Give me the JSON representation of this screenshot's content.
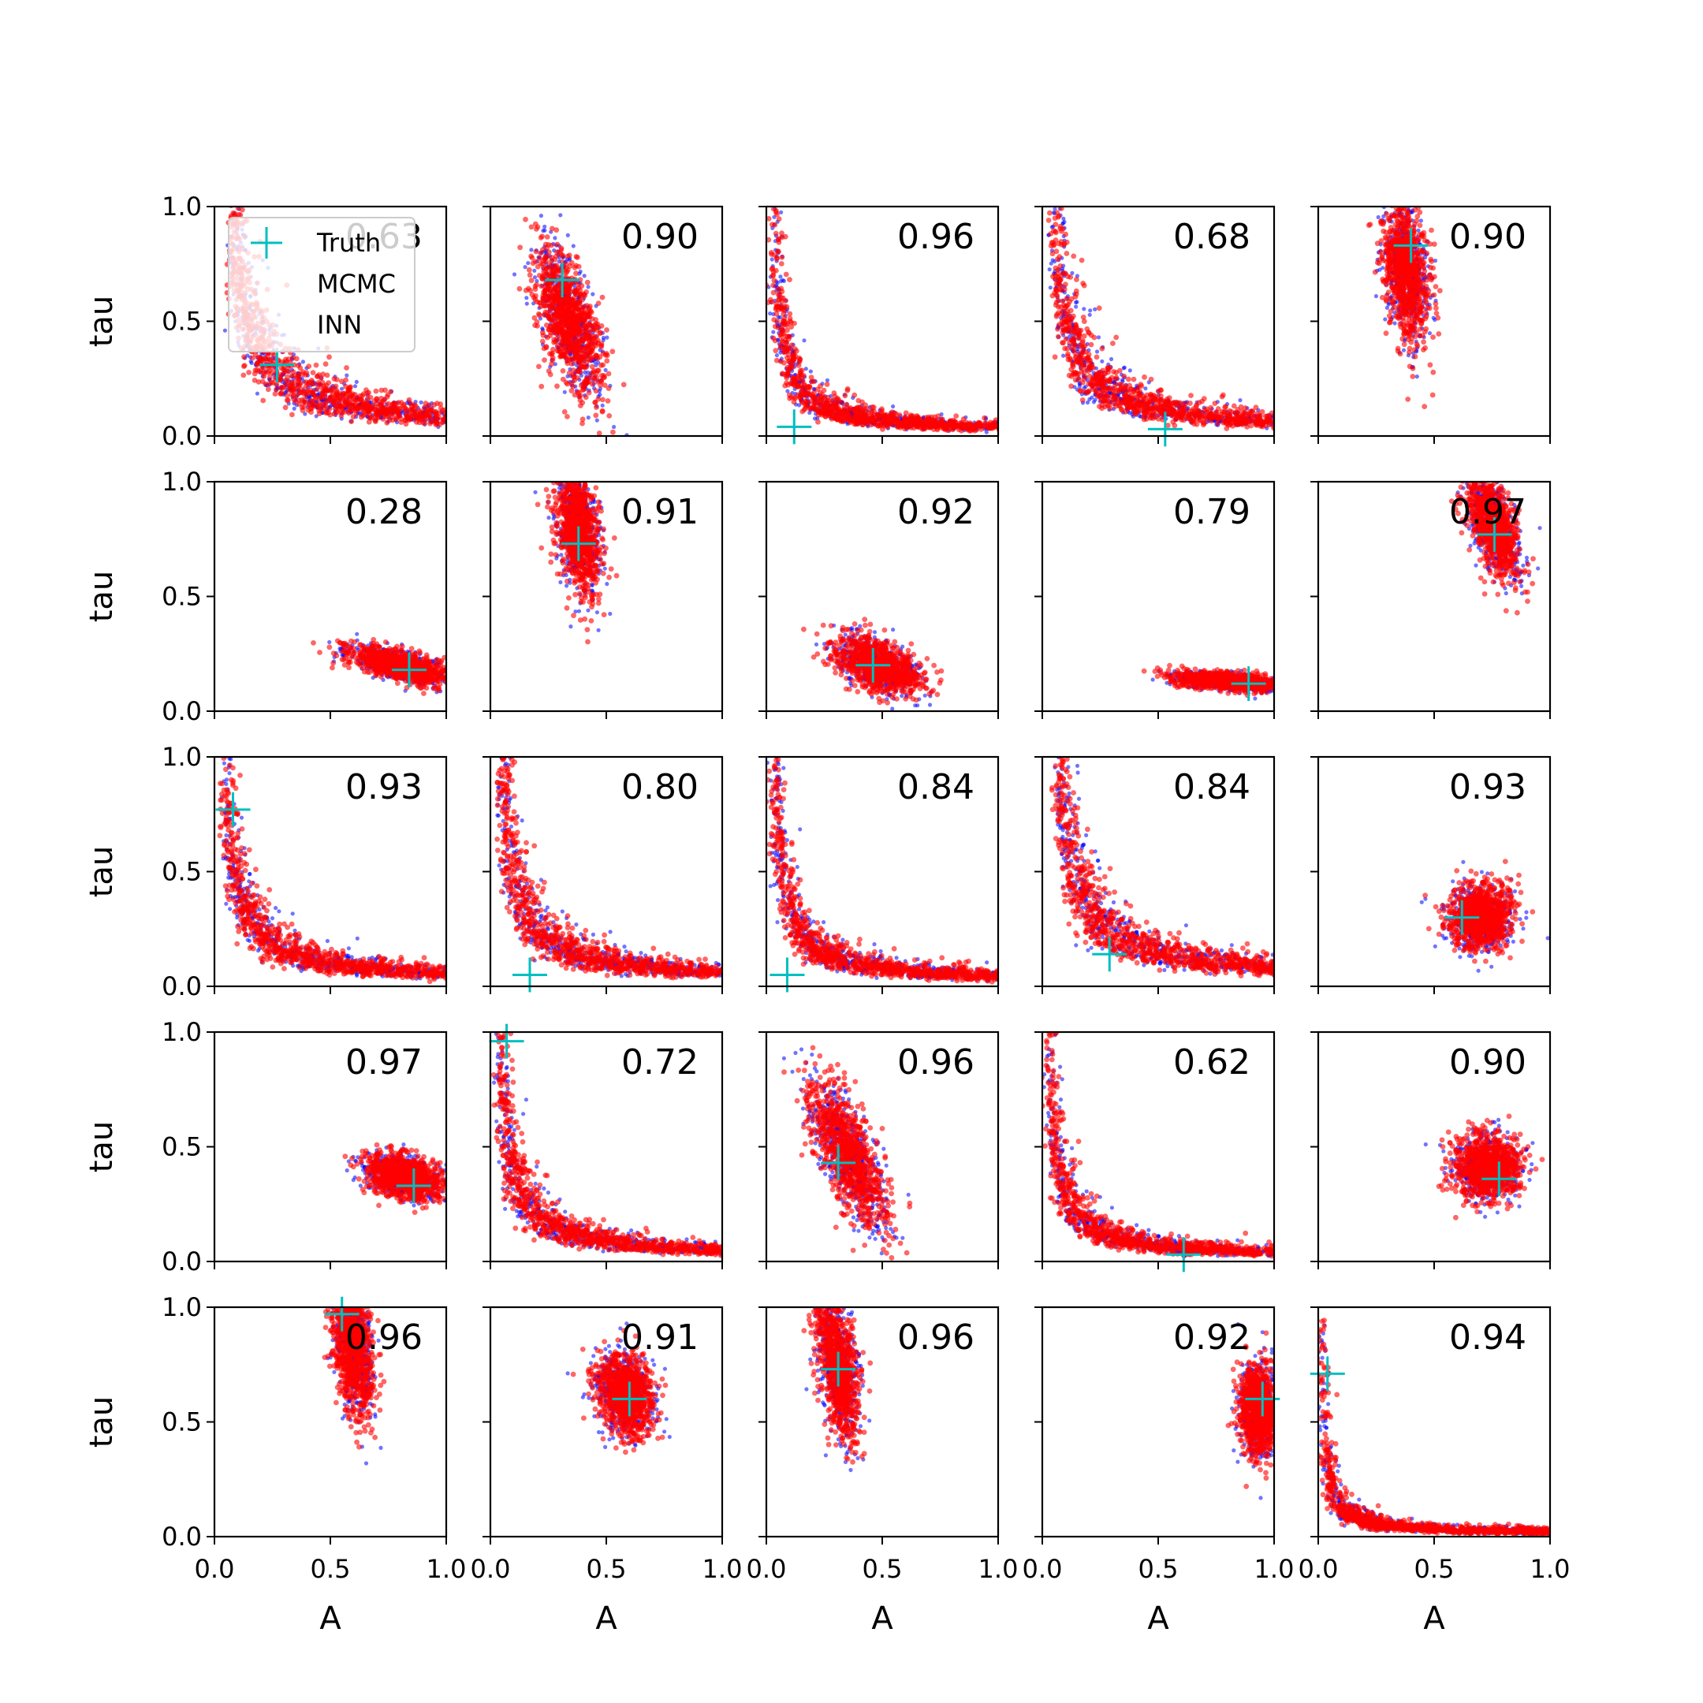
{
  "legend": {
    "placement": "upper-left of first panel",
    "entries": [
      {
        "name": "Truth",
        "color": "#00bfbf",
        "marker": "plus"
      },
      {
        "name": "MCMC",
        "color": "#0000ff",
        "marker": "dot"
      },
      {
        "name": "INN",
        "color": "#ff0000",
        "marker": "dot"
      }
    ]
  },
  "colors": {
    "mcmc": "#0000ff",
    "inn": "#ff0000",
    "truth": "#00bfbf"
  },
  "chart_data": {
    "type": "scatter",
    "grid": false,
    "rows": 5,
    "cols": 5,
    "xlabel": "A",
    "ylabel": "tau",
    "xlim": [
      0,
      1
    ],
    "ylim": [
      0,
      1
    ],
    "xticks": [
      "0.0",
      "0.5",
      "1.0"
    ],
    "yticks": [
      "0.0",
      "0.5",
      "1.0"
    ],
    "panels": [
      {
        "score": "0.63",
        "truth": [
          0.27,
          0.31
        ],
        "shape": "curve",
        "k": 0.075
      },
      {
        "score": "0.90",
        "truth": [
          0.31,
          0.68
        ],
        "shape": "blob",
        "c": [
          0.34,
          0.5
        ],
        "s": [
          0.055,
          0.16
        ],
        "rot": 0.3
      },
      {
        "score": "0.96",
        "truth": [
          0.12,
          0.04
        ],
        "shape": "curve",
        "k": 0.03
      },
      {
        "score": "0.68",
        "truth": [
          0.53,
          0.03
        ],
        "shape": "curve",
        "k": 0.055
      },
      {
        "score": "0.90",
        "truth": [
          0.4,
          0.83
        ],
        "shape": "blob",
        "c": [
          0.38,
          0.72
        ],
        "s": [
          0.045,
          0.15
        ],
        "rot": 0.1
      },
      {
        "score": "0.28",
        "truth": [
          0.84,
          0.18
        ],
        "shape": "blob",
        "c": [
          0.8,
          0.2
        ],
        "s": [
          0.11,
          0.03
        ],
        "rot": -0.25
      },
      {
        "score": "0.91",
        "truth": [
          0.38,
          0.73
        ],
        "shape": "blob",
        "c": [
          0.38,
          0.78
        ],
        "s": [
          0.045,
          0.14
        ],
        "rot": 0.12
      },
      {
        "score": "0.92",
        "truth": [
          0.46,
          0.2
        ],
        "shape": "blob",
        "c": [
          0.48,
          0.2
        ],
        "s": [
          0.1,
          0.05
        ],
        "rot": -0.4
      },
      {
        "score": "0.79",
        "truth": [
          0.89,
          0.12
        ],
        "shape": "blob",
        "c": [
          0.8,
          0.13
        ],
        "s": [
          0.12,
          0.018
        ],
        "rot": -0.08
      },
      {
        "score": "0.97",
        "truth": [
          0.76,
          0.77
        ],
        "shape": "blob",
        "c": [
          0.75,
          0.82
        ],
        "s": [
          0.045,
          0.13
        ],
        "rot": 0.3
      },
      {
        "score": "0.93",
        "truth": [
          0.08,
          0.77
        ],
        "shape": "curve",
        "k": 0.045
      },
      {
        "score": "0.80",
        "truth": [
          0.17,
          0.05
        ],
        "shape": "curve",
        "k": 0.05
      },
      {
        "score": "0.84",
        "truth": [
          0.09,
          0.05
        ],
        "shape": "curve",
        "k": 0.035
      },
      {
        "score": "0.84",
        "truth": [
          0.29,
          0.14
        ],
        "shape": "curve",
        "k": 0.07
      },
      {
        "score": "0.93",
        "truth": [
          0.62,
          0.3
        ],
        "shape": "blob",
        "c": [
          0.7,
          0.3
        ],
        "s": [
          0.07,
          0.07
        ],
        "rot": 0
      },
      {
        "score": "0.97",
        "truth": [
          0.86,
          0.33
        ],
        "shape": "blob",
        "c": [
          0.82,
          0.37
        ],
        "s": [
          0.085,
          0.045
        ],
        "rot": -0.3
      },
      {
        "score": "0.72",
        "truth": [
          0.07,
          0.96
        ],
        "shape": "curve",
        "k": 0.04
      },
      {
        "score": "0.96",
        "truth": [
          0.31,
          0.43
        ],
        "shape": "blob",
        "c": [
          0.36,
          0.45
        ],
        "s": [
          0.055,
          0.17
        ],
        "rot": 0.4
      },
      {
        "score": "0.62",
        "truth": [
          0.61,
          0.03
        ],
        "shape": "curve",
        "k": 0.03
      },
      {
        "score": "0.90",
        "truth": [
          0.78,
          0.36
        ],
        "shape": "blob",
        "c": [
          0.73,
          0.41
        ],
        "s": [
          0.07,
          0.07
        ],
        "rot": 0
      },
      {
        "score": "0.96",
        "truth": [
          0.55,
          0.97
        ],
        "shape": "blob",
        "c": [
          0.6,
          0.82
        ],
        "s": [
          0.04,
          0.15
        ],
        "rot": 0.1
      },
      {
        "score": "0.91",
        "truth": [
          0.6,
          0.6
        ],
        "shape": "blob",
        "c": [
          0.58,
          0.62
        ],
        "s": [
          0.06,
          0.09
        ],
        "rot": 0.2
      },
      {
        "score": "0.96",
        "truth": [
          0.31,
          0.73
        ],
        "shape": "blob",
        "c": [
          0.31,
          0.75
        ],
        "s": [
          0.04,
          0.16
        ],
        "rot": 0.15
      },
      {
        "score": "0.92",
        "truth": [
          0.95,
          0.6
        ],
        "shape": "blob",
        "c": [
          0.93,
          0.55
        ],
        "s": [
          0.04,
          0.1
        ],
        "rot": 0
      },
      {
        "score": "0.94",
        "truth": [
          0.04,
          0.71
        ],
        "shape": "curve",
        "k": 0.012
      }
    ]
  }
}
